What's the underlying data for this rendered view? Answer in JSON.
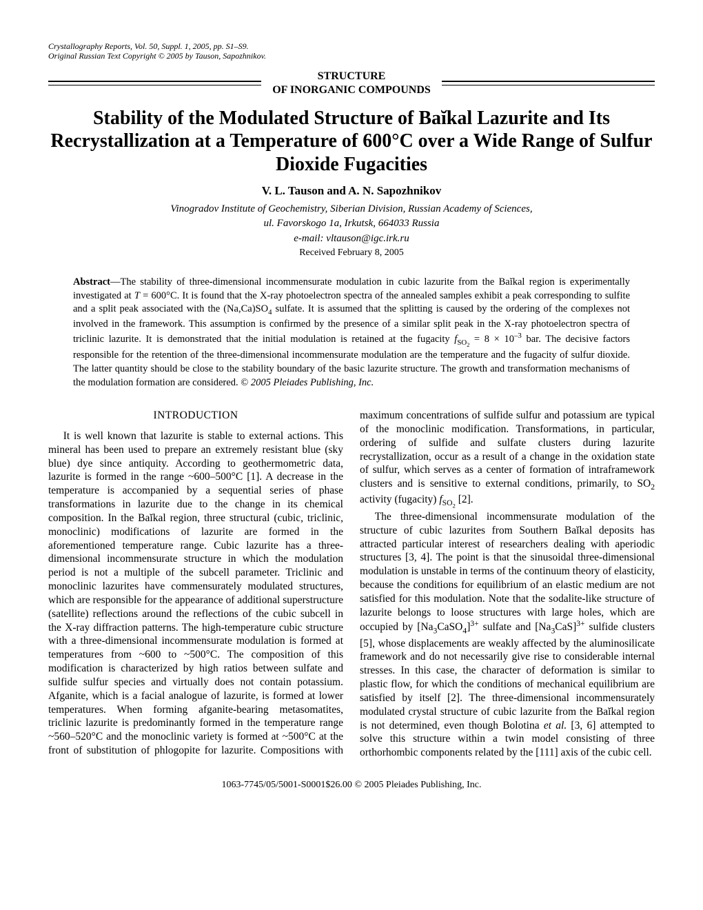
{
  "header": {
    "line1": "Crystallography Reports, Vol. 50, Suppl. 1, 2005, pp. S1–S9.",
    "line2": "Original Russian Text Copyright © 2005 by Tauson, Sapozhnikov."
  },
  "section_label": {
    "line1": "STRUCTURE",
    "line2": "OF INORGANIC COMPOUNDS"
  },
  "title": "Stability of the Modulated Structure of Baĭkal Lazurite and Its Recrystallization at a Temperature of 600°C over a Wide Range of Sulfur Dioxide Fugacities",
  "authors": "V. L. Tauson and A. N. Sapozhnikov",
  "affiliation": {
    "line1": "Vinogradov Institute of Geochemistry, Siberian Division, Russian Academy of Sciences,",
    "line2": "ul. Favorskogo 1a, Irkutsk, 664033 Russia"
  },
  "email": "e-mail: vltauson@igc.irk.ru",
  "received": "Received February 8, 2005",
  "abstract": {
    "label": "Abstract",
    "body_html": "—The stability of three-dimensional incommensurate modulation in cubic lazurite from the Baĭkal region is experimentally investigated at <i>T</i> = 600°C. It is found that the X-ray photoelectron spectra of the annealed samples exhibit a peak corresponding to sulfite and a split peak associated with the (Na,Ca)SO<sub>4</sub> sulfate. It is assumed that the splitting is caused by the ordering of the complexes not involved in the framework. This assumption is confirmed by the presence of a similar split peak in the X-ray photoelectron spectra of triclinic lazurite. It is demonstrated that the initial modulation is retained at the fugacity <i>f</i><sub>SO<sub>2</sub></sub> = 8 × 10<sup>–3</sup> bar. The decisive factors responsible for the retention of the three-dimensional incommensurate modulation are the temperature and the fugacity of sulfur dioxide. The latter quantity should be close to the stability boundary of the basic lazurite structure. The growth and transformation mechanisms of the modulation formation are considered. © <i>2005 Pleiades Publishing, Inc.</i>"
  },
  "intro_heading": "INTRODUCTION",
  "body": {
    "p1_html": "It is well known that lazurite is stable to external actions. This mineral has been used to prepare an extremely resistant blue (sky blue) dye since antiquity. According to geothermometric data, lazurite is formed in the range ~600–500°C [1]. A decrease in the temperature is accompanied by a sequential series of phase transformations in lazurite due to the change in its chemical composition. In the Baĭkal region, three structural (cubic, triclinic, monoclinic) modifications of lazurite are formed in the aforementioned temperature range. Cubic lazurite has a three-dimensional incommensurate structure in which the modulation period is not a multiple of the subcell parameter. Triclinic and monoclinic lazurites have commensurately modulated structures, which are responsible for the appearance of additional superstructure (satellite) reflections around the reflections of the cubic subcell in the X-ray diffraction patterns. The high-temperature cubic structure with a three-dimensional incommensurate modulation is formed at temperatures from ~600 to ~500°C. The composition of this modification is characterized by high ratios between sulfate and sulfide sulfur species and virtually does not contain potassium. Afganite, which is a facial analogue of lazurite, is formed at lower temperatures. When forming afganite-bearing metasomatites, triclinic lazurite is predominantly formed in the temperature range ~560–520°C and the monoclinic variety is formed at ~500°C at the front of substitution of phlogopite for lazurite. Compositions with maximum concentrations of sulfide sulfur and potassium are typical of the monoclinic modification. Transformations, in particular, ordering of sulfide and sulfate clusters during lazurite recrystallization, occur as a result of a change in the oxidation state of sulfur, which serves as a center of formation of intraframework clusters and is sensitive to external conditions, primarily, to SO<sub>2</sub> activity (fugacity) <i>f</i><sub>SO<sub>2</sub></sub> [2].",
    "p2_html": "The three-dimensional incommensurate modulation of the structure of cubic lazurites from Southern Baĭkal deposits has attracted particular interest of researchers dealing with aperiodic structures [3, 4]. The point is that the sinusoidal three-dimensional modulation is unstable in terms of the continuum theory of elasticity, because the conditions for equilibrium of an elastic medium are not satisfied for this modulation. Note that the sodalite-like structure of lazurite belongs to loose structures with large holes, which are occupied by [Na<sub>3</sub>CaSO<sub>4</sub>]<sup>3+</sup> sulfate and [Na<sub>3</sub>CaS]<sup>3+</sup> sulfide clusters [5], whose displacements are weakly affected by the aluminosilicate framework and do not necessarily give rise to considerable internal stresses. In this case, the character of deformation is similar to plastic flow, for which the conditions of mechanical equilibrium are satisfied by itself [2]. The three-dimensional incommensurately modulated crystal structure of cubic lazurite from the Baĭkal region is not determined, even though Bolotina <i>et al.</i> [3, 6] attempted to solve this structure within a twin model consisting of three orthorhombic components related by the [111] axis of the cubic cell."
  },
  "footer": "1063-7745/05/5001-S0001$26.00 © 2005 Pleiades Publishing, Inc."
}
